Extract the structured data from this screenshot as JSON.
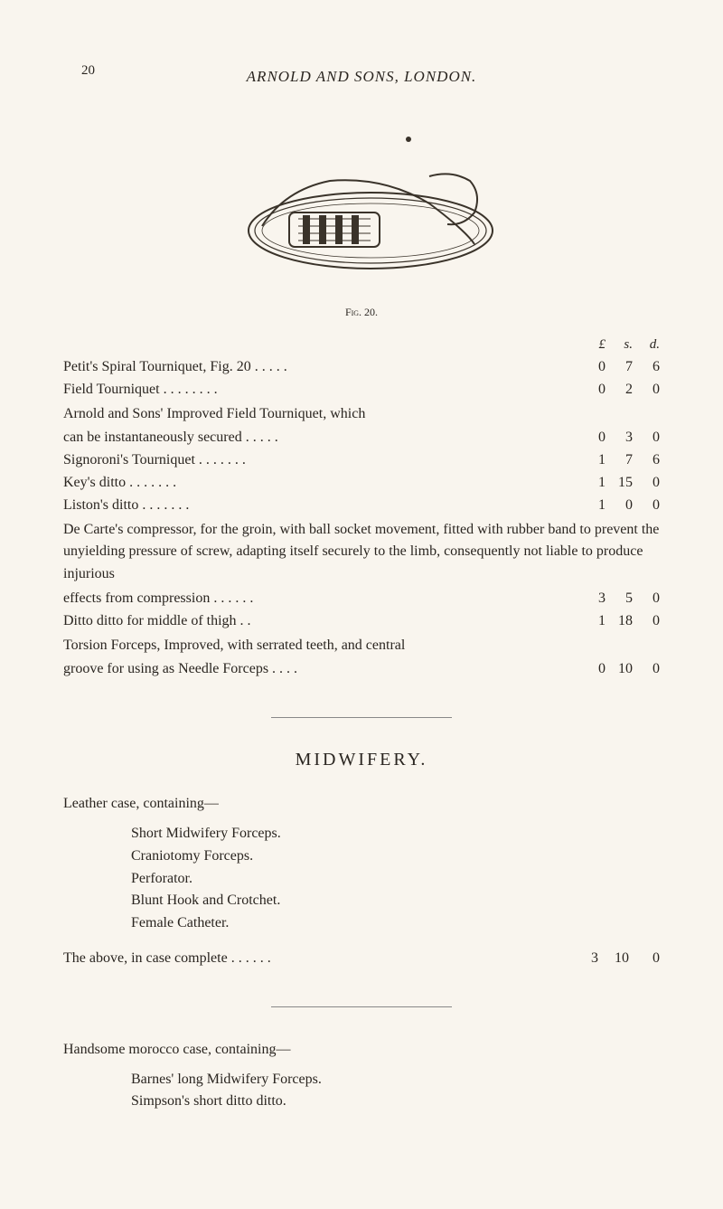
{
  "page_number": "20",
  "header": "ARNOLD AND SONS, LONDON.",
  "figure": {
    "caption": "Fig. 20."
  },
  "currency_header": {
    "pound": "£",
    "shilling": "s.",
    "pence": "d."
  },
  "items": [
    {
      "label": "Petit's Spiral Tourniquet, Fig. 20     .     .     .     .     .",
      "l": "0",
      "s": "7",
      "d": "6"
    },
    {
      "label": "Field Tourniquet     .     .     .     .     .     .     .     .",
      "l": "0",
      "s": "2",
      "d": "0"
    },
    {
      "label_prefix": "Arnold and Sons' Improved Field Tourniquet, which",
      "label": "    can be instantaneously secured     .     .     .     .     .",
      "l": "0",
      "s": "3",
      "d": "0"
    },
    {
      "label": "Signoroni's Tourniquet     .     .     .     .     .     .     .",
      "l": "1",
      "s": "7",
      "d": "6"
    },
    {
      "label": "Key's                  ditto         .     .     .     .     .     .     .",
      "l": "1",
      "s": "15",
      "d": "0"
    },
    {
      "label": "Liston's               ditto         .     .     .     .     .     .     .",
      "l": "1",
      "s": "0",
      "d": "0"
    },
    {
      "label_prefix": "De Carte's compressor, for the groin, with ball socket movement, fitted with rubber band to prevent the unyielding pressure of screw, adapting itself securely to the limb, consequently not liable to produce injurious",
      "label": "    effects from compression     .     .     .     .     .     .",
      "l": "3",
      "s": "5",
      "d": "0"
    },
    {
      "label": "    Ditto                  ditto              for middle of thigh     .     .",
      "l": "1",
      "s": "18",
      "d": "0"
    },
    {
      "label_prefix": "Torsion Forceps, Improved, with serrated teeth, and central",
      "label": "    groove for using as Needle Forceps     .     .     .     .",
      "l": "0",
      "s": "10",
      "d": "0"
    }
  ],
  "midwifery": {
    "title": "MIDWIFERY.",
    "leather_intro": "Leather case, containing—",
    "leather_items": [
      "Short Midwifery Forceps.",
      "Craniotomy Forceps.",
      "Perforator.",
      "Blunt Hook and Crotchet.",
      "Female Catheter."
    ],
    "leather_total": {
      "label": "The above, in case complete .     .     .     .     .     .",
      "l": "3",
      "s": "10",
      "d": "0"
    },
    "handsome_intro": "Handsome morocco case, containing—",
    "handsome_items": [
      "Barnes' long Midwifery Forceps.",
      "Simpson's short ditto      ditto."
    ]
  },
  "colors": {
    "bg": "#f9f5ee",
    "text": "#2a2520",
    "rule": "#888888"
  }
}
